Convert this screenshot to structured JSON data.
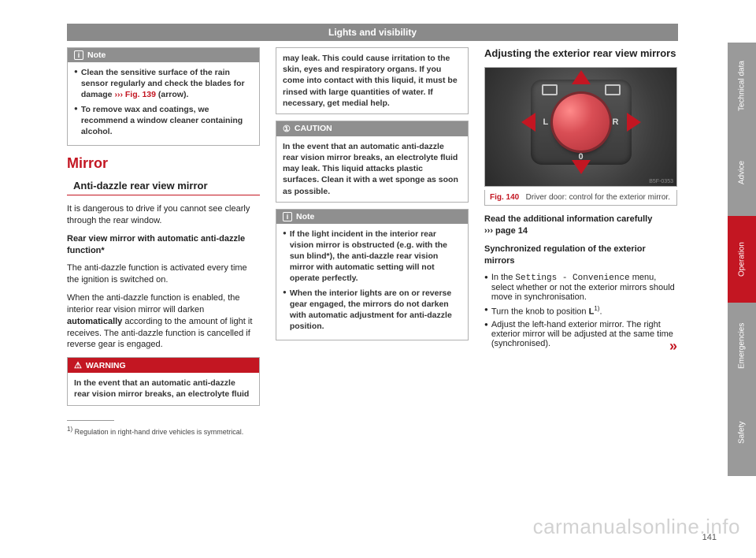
{
  "chapter": "Lights and visibility",
  "pageNumber": "141",
  "watermark": "carmanualsonline.info",
  "tabs": [
    "Technical data",
    "Advice",
    "Operation",
    "Emergencies",
    "Safety"
  ],
  "col1": {
    "noteHeader": "Note",
    "noteBody1a": "Clean the sensitive surface of the rain sensor regularly and check the blades for damage ",
    "noteBody1b": "››› Fig. 139",
    "noteBody1c": " (arrow).",
    "noteBody2": "To remove wax and coatings, we recommend a window cleaner containing alcohol.",
    "mirrorTitle": "Mirror",
    "subsection": "Anti-dazzle rear view mirror",
    "p1": "It is dangerous to drive if you cannot see clearly through the rear window.",
    "p2title": "Rear view mirror with automatic anti-dazzle function*",
    "p3": "The anti-dazzle function is activated every time the ignition is switched on.",
    "p4a": "When the anti-dazzle function is enabled, the interior rear vision mirror will darken ",
    "p4b": "automatically",
    "p4c": " according to the amount of light it receives. The anti-dazzle function is cancelled if reverse gear is engaged.",
    "warnHeader": "WARNING",
    "warnBody": "In the event that an automatic anti-dazzle rear vision mirror breaks, an electrolyte fluid",
    "footnote": "Regulation in right-hand drive vehicles is symmetrical.",
    "footnoteNum": "1)"
  },
  "col2": {
    "warnCont": "may leak. This could cause irritation to the skin, eyes and respiratory organs. If you come into contact with this liquid, it must be rinsed with large quantities of water. If necessary, get medial help.",
    "cautionHeader": "CAUTION",
    "cautionBody": "In the event that an automatic anti-dazzle rear vision mirror breaks, an electrolyte fluid may leak. This liquid attacks plastic surfaces. Clean it with a wet sponge as soon as possible.",
    "noteHeader": "Note",
    "noteBody1": "If the light incident in the interior rear vision mirror is obstructed (e.g. with the sun blind*), the anti-dazzle rear vision mirror with automatic setting will not operate perfectly.",
    "noteBody2": "When the interior lights are on or reverse gear engaged, the mirrors do not darken with automatic adjustment for anti-dazzle position."
  },
  "col3": {
    "subsection": "Adjusting the exterior rear view mirrors",
    "figNum": "Fig. 140",
    "figCaption": "Driver door: control for the exterior mirror.",
    "figCode": "B5F-0353",
    "knob": {
      "L": "L",
      "R": "R",
      "O": "0"
    },
    "p1a": "Read the additional information carefully",
    "p1b": "›››  page 14",
    "p2title": "Synchronized regulation of the exterior mirrors",
    "b1a": "In the ",
    "b1b": "Settings - Convenience",
    "b1c": " menu, select whether or not the exterior mirrors should move in synchronisation.",
    "b2a": "Turn the knob to position ",
    "b2b": "L",
    "b2c": ".",
    "b2sup": "1)",
    "b3": "Adjust the left-hand exterior mirror. The right exterior mirror will be adjusted at the same time (synchronised).",
    "continue": "»"
  }
}
